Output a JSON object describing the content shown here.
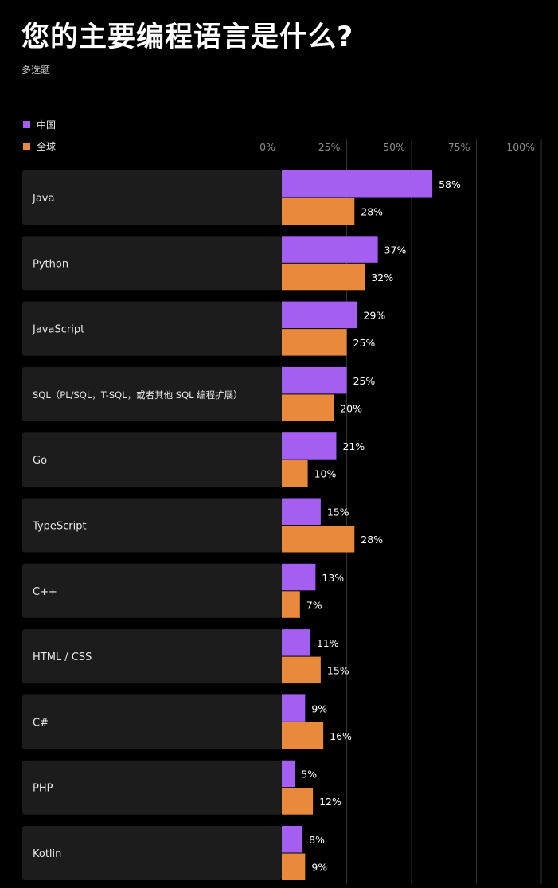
{
  "title": "您的主要编程语言是什么?",
  "subtitle": "多选题",
  "colors": {
    "china": "#a55ff0",
    "global": "#e8893c",
    "row_bg": "#1c1c1c",
    "grid": "#333333",
    "tick_text": "#8c8c8c"
  },
  "chart_data": {
    "type": "bar",
    "orientation": "horizontal",
    "legend_position": "top-left",
    "grid": true,
    "xlim": [
      0,
      100
    ],
    "x_ticks": [
      "0%",
      "25%",
      "50%",
      "75%",
      "100%"
    ],
    "x_tick_values": [
      0,
      25,
      50,
      75,
      100
    ],
    "categories": [
      "Java",
      "Python",
      "JavaScript",
      "SQL（PL/SQL，T-SQL，或者其他 SQL 编程扩展）",
      "Go",
      "TypeScript",
      "C++",
      "HTML / CSS",
      "C#",
      "PHP",
      "Kotlin"
    ],
    "series": [
      {
        "name": "中国",
        "color": "#a55ff0",
        "values": [
          58,
          37,
          29,
          25,
          21,
          15,
          13,
          11,
          9,
          5,
          8
        ],
        "labels": [
          "58%",
          "37%",
          "29%",
          "25%",
          "21%",
          "15%",
          "13%",
          "11%",
          "9%",
          "5%",
          "8%"
        ]
      },
      {
        "name": "全球",
        "color": "#e8893c",
        "values": [
          28,
          32,
          25,
          20,
          10,
          28,
          7,
          15,
          16,
          12,
          9
        ],
        "labels": [
          "28%",
          "32%",
          "25%",
          "20%",
          "10%",
          "28%",
          "7%",
          "15%",
          "16%",
          "12%",
          "9%"
        ]
      }
    ]
  }
}
